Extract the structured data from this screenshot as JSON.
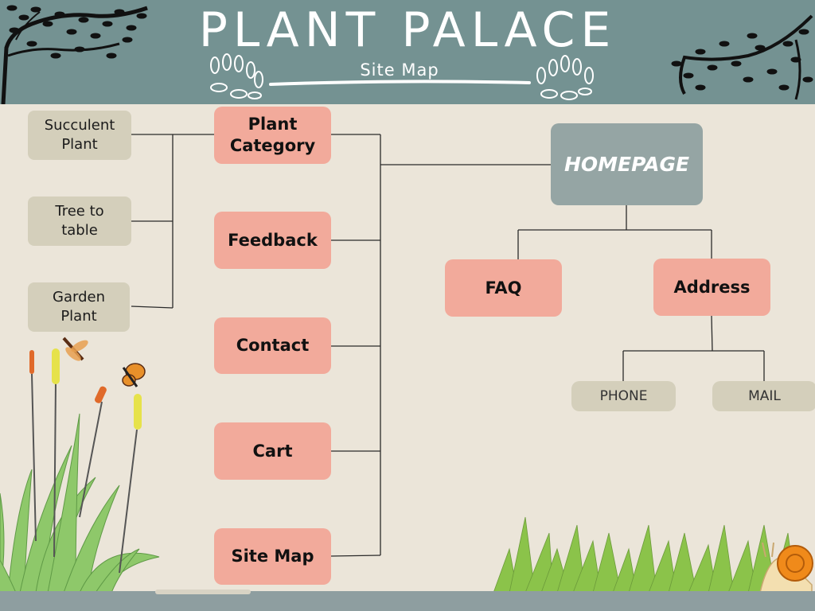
{
  "header": {
    "title": "PLANT PALACE",
    "subtitle": "Site Map"
  },
  "sitemap": {
    "root": "HOMEPAGE",
    "main_pages": [
      "Plant Category",
      "Feedback",
      "Contact",
      "Cart",
      "Site Map"
    ],
    "plant_categories": [
      "Succulent Plant",
      "Tree to table",
      "Garden Plant"
    ],
    "home_children": [
      "FAQ",
      "Address"
    ],
    "address_children": [
      "PHONE",
      "MAIL"
    ]
  },
  "colors": {
    "header_bg": "#749292",
    "page_bg": "#ebe5d9",
    "page_box": "#f2aa9b",
    "category_box": "#d4cfbb",
    "homepage_box": "#95a5a4",
    "connector": "#2a2a2a"
  },
  "decor": [
    "tree-branch-left",
    "tree-branch-right",
    "leaf-sprig-left",
    "leaf-sprig-right",
    "tall-grass",
    "cattails",
    "dragonfly",
    "butterfly",
    "grass-clump",
    "snail"
  ]
}
